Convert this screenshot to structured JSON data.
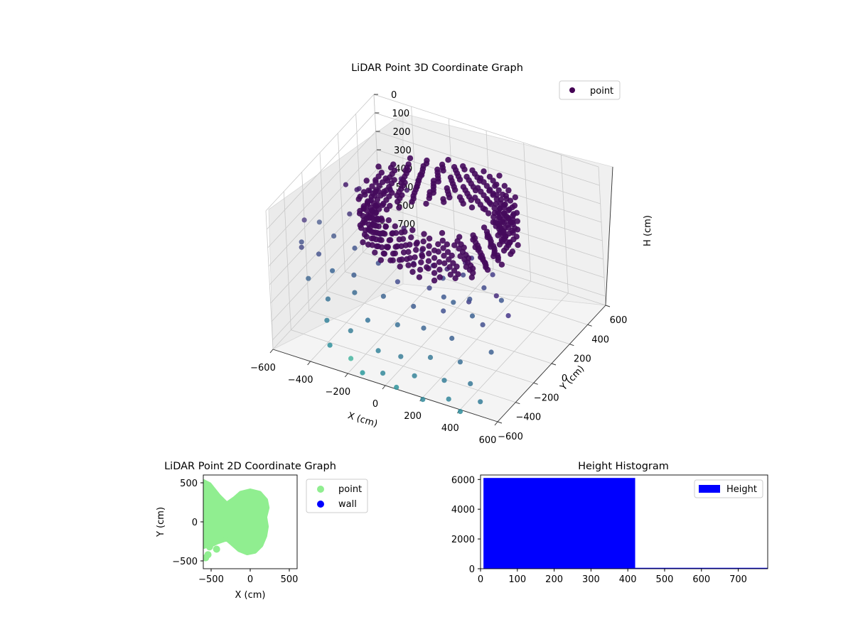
{
  "figure": {
    "background": "#ffffff"
  },
  "chart_data": [
    {
      "id": "lidar-3d",
      "type": "scatter",
      "title": "LiDAR Point 3D Coordinate Graph",
      "xlabel": "X (cm)",
      "ylabel": "Y (cm)",
      "zlabel": "H (cm)",
      "xlim": [
        -600,
        600
      ],
      "ylim": [
        -600,
        600
      ],
      "zlim": [
        0,
        750
      ],
      "z_inverted": true,
      "grid": true,
      "x_ticks": [
        -600,
        -400,
        -200,
        0,
        200,
        400,
        600
      ],
      "y_ticks": [
        -600,
        -400,
        -200,
        0,
        200,
        400,
        600
      ],
      "z_ticks": [
        0,
        100,
        200,
        300,
        400,
        500,
        600,
        700
      ],
      "x_tick_labels": [
        "−600",
        "−400",
        "−200",
        "0",
        "200",
        "400",
        "600"
      ],
      "y_tick_labels": [
        "−600",
        "−400",
        "−200",
        "0",
        "200",
        "400",
        "600"
      ],
      "z_tick_labels": [
        "0",
        "100",
        "200",
        "300",
        "400",
        "500",
        "600",
        "700"
      ],
      "colormap": "viridis",
      "legend": {
        "position": "top-right",
        "entries": [
          {
            "label": "point",
            "color": "#440154"
          }
        ]
      },
      "series": [
        {
          "name": "point",
          "dense_ceiling_ring": {
            "center": [
              0,
              50
            ],
            "radius": [
              300,
              380
            ],
            "height": [
              80,
              300
            ]
          },
          "points": [
            [
              -600,
              -200,
              260,
              "#5a4a8a"
            ],
            [
              -580,
              -280,
              330,
              "#4e5a90"
            ],
            [
              -560,
              -120,
              300,
              "#5a6a98"
            ],
            [
              -530,
              -380,
              290,
              "#4c4f8a"
            ],
            [
              -500,
              -260,
              380,
              "#4a5890"
            ],
            [
              -470,
              -150,
              330,
              "#506292"
            ],
            [
              -450,
              -480,
              380,
              "#466c94"
            ],
            [
              -430,
              -50,
              250,
              "#4a3c7e"
            ],
            [
              -410,
              -300,
              420,
              "#3d6795"
            ],
            [
              -380,
              -420,
              500,
              "#3c7798"
            ],
            [
              -360,
              -150,
              360,
              "#46598f"
            ],
            [
              -340,
              -520,
              550,
              "#34839a"
            ],
            [
              -320,
              -250,
              440,
              "#416090"
            ],
            [
              -300,
              -580,
              640,
              "#2f8f9b"
            ],
            [
              -280,
              -330,
              480,
              "#3e6d93"
            ],
            [
              -260,
              -60,
              300,
              "#47337a"
            ],
            [
              -240,
              -470,
              600,
              "#3a8098"
            ],
            [
              -220,
              -180,
              380,
              "#445590"
            ],
            [
              -200,
              -560,
              690,
              "#48b5a0"
            ],
            [
              -180,
              -400,
              560,
              "#36769a"
            ],
            [
              -160,
              -10,
              260,
              "#482070"
            ],
            [
              -140,
              -300,
              470,
              "#3f6692"
            ],
            [
              -120,
              -600,
              720,
              "#2c9a9c"
            ],
            [
              -100,
              -220,
              420,
              "#475090"
            ],
            [
              -80,
              -500,
              640,
              "#35849a"
            ],
            [
              -60,
              -120,
              360,
              "#482f78"
            ],
            [
              -40,
              -360,
              560,
              "#3b7296"
            ],
            [
              -20,
              -580,
              700,
              "#34889a"
            ],
            [
              0,
              -260,
              500,
              "#3f5e90"
            ],
            [
              20,
              -460,
              660,
              "#3a7e98"
            ],
            [
              40,
              -160,
              440,
              "#43488a"
            ],
            [
              60,
              -600,
              740,
              "#2f939b"
            ],
            [
              80,
              -320,
              560,
              "#3e6794"
            ],
            [
              100,
              -80,
              360,
              "#47287a"
            ],
            [
              120,
              -520,
              700,
              "#368499"
            ],
            [
              140,
              -220,
              500,
              "#425290"
            ],
            [
              160,
              -420,
              640,
              "#397a97"
            ],
            [
              180,
              -40,
              320,
              "#471e6e"
            ],
            [
              200,
              -600,
              760,
              "#31899a"
            ],
            [
              220,
              -300,
              580,
              "#3e6392"
            ],
            [
              240,
              -140,
              460,
              "#44418a"
            ],
            [
              260,
              -480,
              700,
              "#367e98"
            ],
            [
              280,
              -20,
              300,
              "#481a6c"
            ],
            [
              300,
              -380,
              640,
              "#3a7095"
            ],
            [
              320,
              -560,
              740,
              "#33869a"
            ],
            [
              340,
              -200,
              520,
              "#43508e"
            ],
            [
              360,
              -80,
              420,
              "#462c7c"
            ],
            [
              380,
              -440,
              700,
              "#377896"
            ],
            [
              400,
              -600,
              760,
              "#2f8d9b"
            ],
            [
              420,
              -280,
              600,
              "#3e6192"
            ],
            [
              440,
              -120,
              480,
              "#45368a"
            ],
            [
              460,
              -500,
              740,
              "#347c98"
            ],
            [
              -150,
              150,
              460,
              "#47347c"
            ],
            [
              -120,
              200,
              560,
              "#464088"
            ],
            [
              -90,
              240,
              640,
              "#434e8e"
            ],
            [
              -60,
              180,
              700,
              "#3f5a90"
            ],
            [
              -30,
              220,
              740,
              "#3d6292"
            ],
            [
              10,
              260,
              600,
              "#44468a"
            ],
            [
              40,
              300,
              520,
              "#473a84"
            ],
            [
              70,
              200,
              680,
              "#41568e"
            ],
            [
              100,
              160,
              740,
              "#3c6292"
            ],
            [
              130,
              240,
              620,
              "#434c8c"
            ],
            [
              160,
              280,
              560,
              "#453e88"
            ],
            [
              190,
              300,
              700,
              "#3f5890"
            ],
            [
              -520,
              100,
              200,
              "#481f6f"
            ],
            [
              -480,
              160,
              240,
              "#482472"
            ],
            [
              -440,
              60,
              180,
              "#481c6e"
            ],
            [
              -400,
              120,
              260,
              "#482676"
            ],
            [
              -360,
              40,
              150,
              "#471a6c"
            ],
            [
              -330,
              200,
              220,
              "#472070"
            ],
            [
              -300,
              260,
              180,
              "#481c6e"
            ],
            [
              -270,
              80,
              130,
              "#47176b"
            ],
            [
              -240,
              320,
              200,
              "#481d6f"
            ],
            [
              -210,
              140,
              150,
              "#48186c"
            ]
          ]
        }
      ]
    },
    {
      "id": "lidar-2d",
      "type": "scatter",
      "title": "LiDAR Point 2D Coordinate Graph",
      "xlabel": "X (cm)",
      "ylabel": "Y (cm)",
      "xlim": [
        -600,
        600
      ],
      "ylim": [
        -600,
        600
      ],
      "x_ticks": [
        -500,
        0,
        500
      ],
      "y_ticks": [
        -500,
        0,
        500
      ],
      "x_tick_labels": [
        "−500",
        "0",
        "500"
      ],
      "y_tick_labels": [
        "−500",
        "0",
        "500"
      ],
      "legend": {
        "position": "outside-right",
        "entries": [
          {
            "label": "point",
            "color": "#90ee90"
          },
          {
            "label": "wall",
            "color": "#0000ff"
          }
        ]
      },
      "series": [
        {
          "name": "point",
          "color": "#90ee90",
          "outline": [
            [
              -600,
              520
            ],
            [
              -520,
              480
            ],
            [
              -400,
              330
            ],
            [
              -300,
              230
            ],
            [
              -200,
              300
            ],
            [
              -120,
              370
            ],
            [
              0,
              400
            ],
            [
              120,
              370
            ],
            [
              200,
              280
            ],
            [
              220,
              180
            ],
            [
              190,
              60
            ],
            [
              210,
              -60
            ],
            [
              190,
              -180
            ],
            [
              140,
              -300
            ],
            [
              60,
              -380
            ],
            [
              -40,
              -400
            ],
            [
              -140,
              -360
            ],
            [
              -220,
              -290
            ],
            [
              -300,
              -220
            ],
            [
              -420,
              -260
            ],
            [
              -500,
              -300
            ],
            [
              -600,
              -290
            ]
          ],
          "points": [
            [
              -590,
              -300
            ],
            [
              -520,
              -320
            ],
            [
              -540,
              -420
            ],
            [
              -570,
              -460
            ],
            [
              -430,
              -350
            ],
            [
              -480,
              -120
            ]
          ]
        },
        {
          "name": "wall",
          "color": "#0000ff",
          "points": []
        }
      ]
    },
    {
      "id": "height-histogram",
      "type": "bar",
      "title": "Height Histogram",
      "xlim": [
        0,
        780
      ],
      "ylim": [
        0,
        6300
      ],
      "x_ticks": [
        0,
        100,
        200,
        300,
        400,
        500,
        600,
        700
      ],
      "y_ticks": [
        0,
        2000,
        4000,
        6000
      ],
      "x_tick_labels": [
        "0",
        "100",
        "200",
        "300",
        "400",
        "500",
        "600",
        "700"
      ],
      "y_tick_labels": [
        "0",
        "2000",
        "4000",
        "6000"
      ],
      "legend": {
        "position": "top-right",
        "entries": [
          {
            "label": "Height",
            "color": "#0000ff"
          }
        ]
      },
      "series": [
        {
          "name": "Height",
          "color": "#0000ff",
          "bins": [
            {
              "from": 8,
              "to": 420,
              "count": 6100
            },
            {
              "from": 420,
              "to": 780,
              "count": 60
            }
          ]
        }
      ]
    }
  ]
}
